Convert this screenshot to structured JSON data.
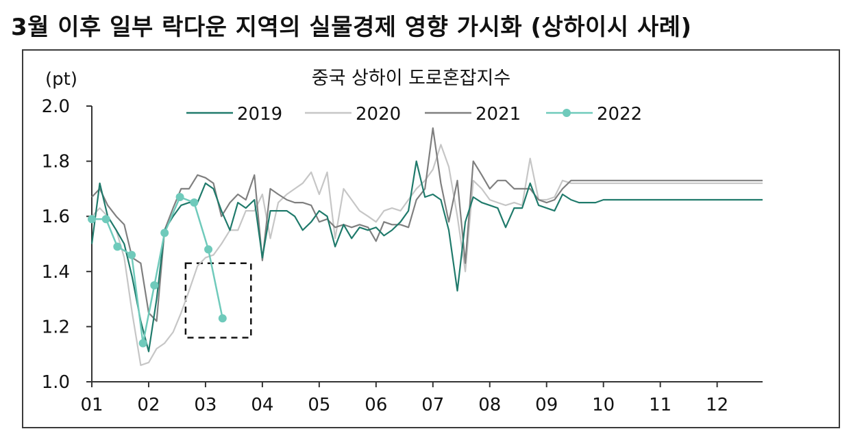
{
  "page": {
    "title": "3월 이후 일부 락다운 지역의 실물경제 영향 가시화 (상하이시 사례)"
  },
  "colors": {
    "2019": "#1f7a6b",
    "2020": "#c6c6c6",
    "2021": "#7f7f7f",
    "2022": "#6fcabb",
    "axis": "#333333",
    "highlight_box": "#111111"
  },
  "chart_data": {
    "type": "line",
    "title": "중국 상하이 도로혼잡지수",
    "unit_label": "(pt)",
    "xlabel": "",
    "ylabel": "",
    "ylim": [
      1.0,
      2.0
    ],
    "yticks": [
      "1.0",
      "1.2",
      "1.4",
      "1.6",
      "1.8",
      "2.0"
    ],
    "xlim": [
      1,
      12.8
    ],
    "xticks": [
      "01",
      "02",
      "03",
      "04",
      "05",
      "06",
      "07",
      "08",
      "09",
      "10",
      "11",
      "12"
    ],
    "grid": false,
    "legend": "top",
    "annotations": [
      {
        "type": "dashed-box",
        "x_range": [
          2.65,
          3.8
        ],
        "y_range": [
          1.16,
          1.43
        ]
      }
    ],
    "series": [
      {
        "name": "2019",
        "markers": false,
        "x": [
          1.0,
          1.14,
          1.28,
          1.43,
          1.57,
          1.71,
          1.86,
          2.0,
          2.14,
          2.28,
          2.43,
          2.57,
          2.71,
          2.86,
          3.0,
          3.14,
          3.28,
          3.43,
          3.57,
          3.71,
          3.86,
          4.0,
          4.14,
          4.28,
          4.43,
          4.57,
          4.71,
          4.86,
          5.0,
          5.14,
          5.28,
          5.43,
          5.57,
          5.71,
          5.86,
          6.0,
          6.14,
          6.28,
          6.43,
          6.57,
          6.71,
          6.86,
          7.0,
          7.14,
          7.28,
          7.43,
          7.57,
          7.71,
          7.86,
          8.0,
          8.14,
          8.28,
          8.43,
          8.57,
          8.71,
          8.86,
          9.0,
          9.14,
          9.28,
          9.43,
          9.57,
          9.71,
          9.86,
          10.0,
          10.14,
          10.28,
          10.43,
          10.57,
          10.71,
          10.86,
          11.0,
          11.14,
          11.28,
          11.43,
          11.57,
          11.71,
          11.86,
          12.0,
          12.14,
          12.28,
          12.43,
          12.57,
          12.71,
          12.8
        ],
        "y": [
          1.5,
          1.72,
          1.6,
          1.55,
          1.5,
          1.38,
          1.22,
          1.11,
          1.3,
          1.55,
          1.6,
          1.64,
          1.65,
          1.65,
          1.72,
          1.7,
          1.62,
          1.55,
          1.65,
          1.63,
          1.66,
          1.45,
          1.62,
          1.62,
          1.62,
          1.6,
          1.55,
          1.58,
          1.62,
          1.6,
          1.49,
          1.57,
          1.52,
          1.56,
          1.55,
          1.56,
          1.53,
          1.55,
          1.58,
          1.62,
          1.8,
          1.67,
          1.68,
          1.66,
          1.55,
          1.33,
          1.58,
          1.67,
          1.65,
          1.64,
          1.63,
          1.56,
          1.63,
          1.63,
          1.72,
          1.64,
          1.63,
          1.62,
          1.68,
          1.66,
          1.65,
          1.65,
          1.65,
          1.66,
          1.66,
          1.66,
          1.66,
          1.66,
          1.66,
          1.66,
          1.66,
          1.66,
          1.66,
          1.66,
          1.66,
          1.66,
          1.66,
          1.66,
          1.66,
          1.66,
          1.66,
          1.66,
          1.66,
          1.66
        ]
      },
      {
        "name": "2020",
        "markers": false,
        "x": [
          1.0,
          1.14,
          1.28,
          1.43,
          1.57,
          1.71,
          1.86,
          2.0,
          2.14,
          2.28,
          2.43,
          2.57,
          2.71,
          2.86,
          3.0,
          3.14,
          3.28,
          3.43,
          3.57,
          3.71,
          3.86,
          4.0,
          4.14,
          4.28,
          4.43,
          4.57,
          4.71,
          4.86,
          5.0,
          5.14,
          5.28,
          5.43,
          5.57,
          5.71,
          5.86,
          6.0,
          6.14,
          6.28,
          6.43,
          6.57,
          6.71,
          6.86,
          7.0,
          7.14,
          7.28,
          7.43,
          7.57,
          7.71,
          7.86,
          8.0,
          8.14,
          8.28,
          8.43,
          8.57,
          8.71,
          8.86,
          9.0,
          9.14,
          9.28,
          9.43,
          9.57,
          9.71,
          9.86,
          10.0,
          10.14,
          10.28,
          10.43,
          10.57,
          10.71,
          10.86,
          11.0,
          11.14,
          11.28,
          11.43,
          11.57,
          11.71,
          11.86,
          12.0,
          12.14,
          12.28,
          12.43,
          12.57,
          12.71,
          12.8
        ],
        "y": [
          1.6,
          1.63,
          1.6,
          1.55,
          1.45,
          1.25,
          1.06,
          1.07,
          1.12,
          1.14,
          1.18,
          1.25,
          1.33,
          1.42,
          1.45,
          1.46,
          1.5,
          1.55,
          1.55,
          1.62,
          1.62,
          1.68,
          1.52,
          1.65,
          1.68,
          1.7,
          1.72,
          1.76,
          1.68,
          1.76,
          1.52,
          1.7,
          1.66,
          1.62,
          1.6,
          1.58,
          1.62,
          1.63,
          1.62,
          1.66,
          1.7,
          1.73,
          1.77,
          1.86,
          1.78,
          1.6,
          1.4,
          1.73,
          1.7,
          1.66,
          1.65,
          1.64,
          1.65,
          1.64,
          1.81,
          1.66,
          1.66,
          1.67,
          1.73,
          1.72,
          1.72,
          1.72,
          1.72,
          1.72,
          1.72,
          1.72,
          1.72,
          1.72,
          1.72,
          1.72,
          1.72,
          1.72,
          1.72,
          1.72,
          1.72,
          1.72,
          1.72,
          1.72,
          1.72,
          1.72,
          1.72,
          1.72,
          1.72,
          1.72
        ]
      },
      {
        "name": "2021",
        "markers": false,
        "x": [
          1.0,
          1.14,
          1.28,
          1.43,
          1.57,
          1.71,
          1.86,
          2.0,
          2.14,
          2.28,
          2.43,
          2.57,
          2.71,
          2.86,
          3.0,
          3.14,
          3.28,
          3.43,
          3.57,
          3.71,
          3.86,
          4.0,
          4.14,
          4.28,
          4.43,
          4.57,
          4.71,
          4.86,
          5.0,
          5.14,
          5.28,
          5.43,
          5.57,
          5.71,
          5.86,
          6.0,
          6.14,
          6.28,
          6.43,
          6.57,
          6.71,
          6.86,
          7.0,
          7.14,
          7.28,
          7.43,
          7.57,
          7.71,
          7.86,
          8.0,
          8.14,
          8.28,
          8.43,
          8.57,
          8.71,
          8.86,
          9.0,
          9.14,
          9.28,
          9.43,
          9.57,
          9.71,
          9.86,
          10.0,
          10.14,
          10.28,
          10.43,
          10.57,
          10.71,
          10.86,
          11.0,
          11.14,
          11.28,
          11.43,
          11.57,
          11.71,
          11.86,
          12.0,
          12.14,
          12.28,
          12.43,
          12.57,
          12.71,
          12.8
        ],
        "y": [
          1.67,
          1.7,
          1.64,
          1.6,
          1.57,
          1.45,
          1.43,
          1.25,
          1.22,
          1.55,
          1.63,
          1.7,
          1.7,
          1.75,
          1.74,
          1.72,
          1.6,
          1.65,
          1.68,
          1.66,
          1.75,
          1.44,
          1.7,
          1.68,
          1.66,
          1.65,
          1.65,
          1.64,
          1.58,
          1.59,
          1.56,
          1.57,
          1.56,
          1.57,
          1.56,
          1.51,
          1.58,
          1.57,
          1.57,
          1.56,
          1.66,
          1.7,
          1.92,
          1.72,
          1.58,
          1.73,
          1.43,
          1.8,
          1.75,
          1.7,
          1.73,
          1.73,
          1.7,
          1.7,
          1.7,
          1.66,
          1.65,
          1.66,
          1.7,
          1.73,
          1.73,
          1.73,
          1.73,
          1.73,
          1.73,
          1.73,
          1.73,
          1.73,
          1.73,
          1.73,
          1.73,
          1.73,
          1.73,
          1.73,
          1.73,
          1.73,
          1.73,
          1.73,
          1.73,
          1.73,
          1.73,
          1.73,
          1.73,
          1.73
        ]
      },
      {
        "name": "2022",
        "markers": true,
        "x": [
          1.0,
          1.25,
          1.45,
          1.7,
          1.9,
          2.1,
          2.28,
          2.55,
          2.8,
          3.05,
          3.3
        ],
        "y": [
          1.59,
          1.59,
          1.49,
          1.46,
          1.14,
          1.35,
          1.54,
          1.67,
          1.65,
          1.48,
          1.23
        ]
      }
    ]
  }
}
